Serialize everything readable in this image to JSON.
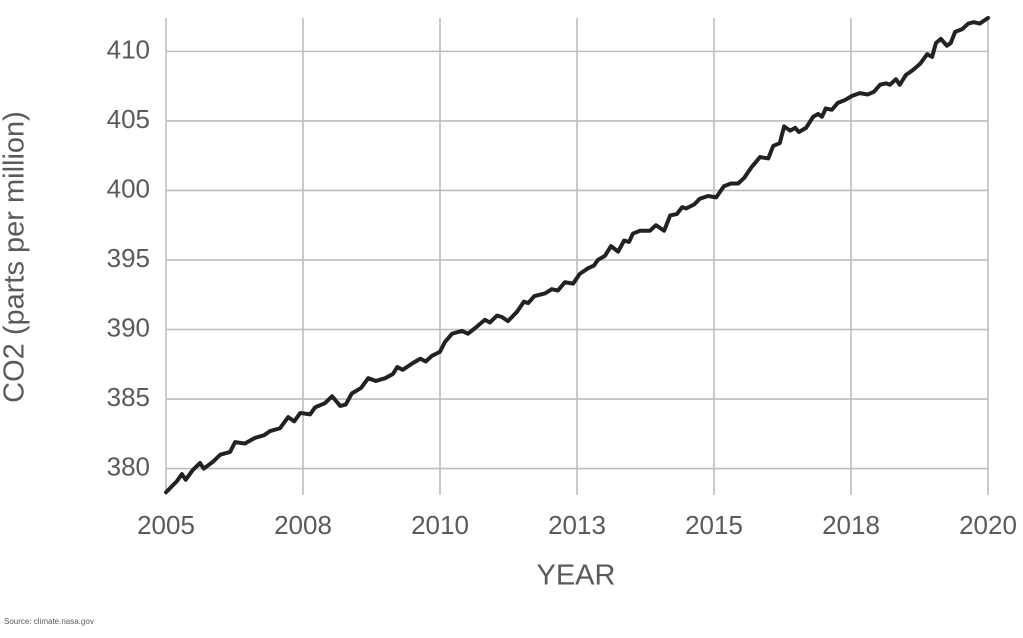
{
  "chart_data": {
    "type": "line",
    "xlabel": "YEAR",
    "ylabel": "CO2 (parts per million)",
    "source": "Source: climate.nasa.gov",
    "xlim": [
      2005,
      2020
    ],
    "xticks": [
      2005,
      {
        "value": 2007.5,
        "label": "2008"
      },
      2010,
      {
        "value": 2012.5,
        "label": "2013"
      },
      2015,
      {
        "value": 2017.5,
        "label": "2018"
      },
      2020
    ],
    "ylim": [
      378.1,
      412.4
    ],
    "yticks": [
      380,
      385,
      390,
      395,
      400,
      405,
      410
    ],
    "grid": true,
    "series": [
      {
        "color": "#222222",
        "x": [
          2005.0,
          2005.2,
          2005.29,
          2005.36,
          2005.49,
          2005.62,
          2005.69,
          2005.86,
          2005.99,
          2006.17,
          2006.26,
          2006.44,
          2006.62,
          2006.79,
          2006.9,
          2007.08,
          2007.23,
          2007.34,
          2007.45,
          2007.63,
          2007.72,
          2007.9,
          2008.03,
          2008.18,
          2008.28,
          2008.39,
          2008.56,
          2008.69,
          2008.83,
          2009.0,
          2009.14,
          2009.22,
          2009.32,
          2009.51,
          2009.64,
          2009.74,
          2009.85,
          2010.0,
          2010.09,
          2010.22,
          2010.4,
          2010.51,
          2010.64,
          2010.82,
          2010.91,
          2011.04,
          2011.13,
          2011.24,
          2011.41,
          2011.53,
          2011.61,
          2011.72,
          2011.92,
          2012.04,
          2012.15,
          2012.28,
          2012.43,
          2012.55,
          2012.7,
          2012.81,
          2012.88,
          2013.01,
          2013.12,
          2013.25,
          2013.36,
          2013.45,
          2013.52,
          2013.65,
          2013.83,
          2013.94,
          2014.09,
          2014.2,
          2014.32,
          2014.42,
          2014.49,
          2014.64,
          2014.74,
          2014.89,
          2015.04,
          2015.18,
          2015.31,
          2015.44,
          2015.55,
          2015.69,
          2015.84,
          2015.99,
          2016.08,
          2016.2,
          2016.28,
          2016.39,
          2016.48,
          2016.55,
          2016.68,
          2016.81,
          2016.9,
          2016.97,
          2017.04,
          2017.15,
          2017.26,
          2017.39,
          2017.52,
          2017.66,
          2017.81,
          2017.92,
          2018.03,
          2018.14,
          2018.21,
          2018.32,
          2018.39,
          2018.5,
          2018.61,
          2018.76,
          2018.89,
          2018.98,
          2019.05,
          2019.14,
          2019.25,
          2019.32,
          2019.4,
          2019.53,
          2019.64,
          2019.74,
          2019.85,
          2020.0
        ],
        "values": [
          378.3,
          379.1,
          379.6,
          379.2,
          379.9,
          380.4,
          380.0,
          380.5,
          381.0,
          381.2,
          381.9,
          381.8,
          382.2,
          382.4,
          382.7,
          382.9,
          383.7,
          383.4,
          384.0,
          383.9,
          384.4,
          384.7,
          385.2,
          384.5,
          384.6,
          385.4,
          385.8,
          386.5,
          386.3,
          386.5,
          386.8,
          387.3,
          387.1,
          387.6,
          387.9,
          387.7,
          388.1,
          388.4,
          389.1,
          389.7,
          389.9,
          389.7,
          390.1,
          390.7,
          390.5,
          391.0,
          390.9,
          390.6,
          391.3,
          392.0,
          391.9,
          392.4,
          392.6,
          392.9,
          392.8,
          393.4,
          393.3,
          394.0,
          394.4,
          394.6,
          395.0,
          395.3,
          396.0,
          395.6,
          396.4,
          396.3,
          396.9,
          397.1,
          397.1,
          397.5,
          397.1,
          398.2,
          398.3,
          398.8,
          398.7,
          399.0,
          399.4,
          399.6,
          399.5,
          400.3,
          400.5,
          400.5,
          400.9,
          401.7,
          402.4,
          402.3,
          403.2,
          403.4,
          404.6,
          404.3,
          404.5,
          404.2,
          404.5,
          405.3,
          405.5,
          405.3,
          405.9,
          405.8,
          406.3,
          406.5,
          406.8,
          407.0,
          406.9,
          407.1,
          407.6,
          407.7,
          407.6,
          408.0,
          407.6,
          408.3,
          408.6,
          409.1,
          409.8,
          409.6,
          410.6,
          410.9,
          410.4,
          410.6,
          411.4,
          411.6,
          412.0,
          412.1,
          412.0,
          412.4
        ]
      }
    ]
  }
}
